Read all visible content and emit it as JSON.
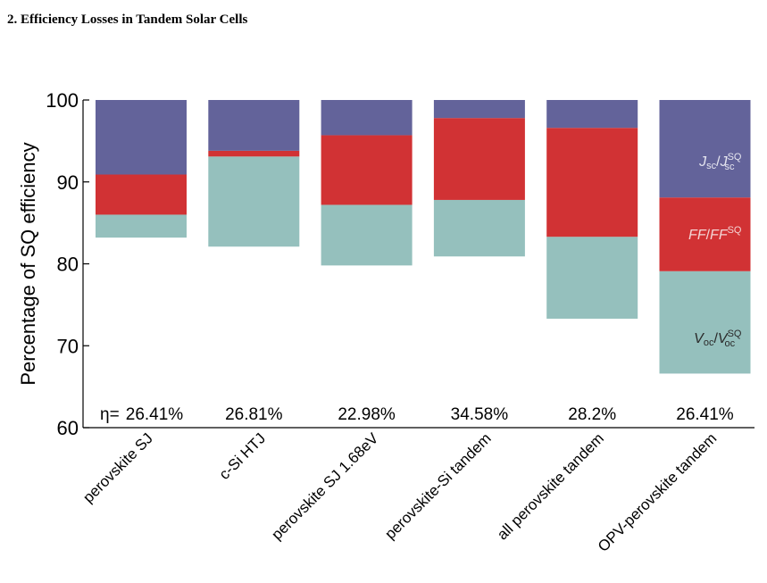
{
  "heading": "2.   Efficiency Losses in Tandem Solar Cells",
  "chart_data": {
    "type": "bar",
    "stacked": true,
    "ylabel": "Percentage of SQ efficiency",
    "ylim": [
      60,
      100
    ],
    "yticks": [
      60,
      70,
      80,
      90,
      100
    ],
    "categories": [
      "perovskite SJ",
      "c-Si HTJ",
      "perovskite SJ 1.68eV",
      "perovskite-Si tandem",
      "all perovskite tandem",
      "OPV-perovskite tandem"
    ],
    "eta_prefix": "η=",
    "efficiencies": [
      "26.41%",
      "26.81%",
      "22.98%",
      "34.58%",
      "28.2%",
      "26.41%"
    ],
    "series": [
      {
        "key": "voc",
        "color": "#95c0bd",
        "lower": [
          83.2,
          82.1,
          79.8,
          80.9,
          73.3,
          66.6
        ],
        "upper": [
          86.0,
          93.1,
          87.2,
          87.8,
          83.3,
          79.1
        ]
      },
      {
        "key": "ff",
        "color": "#d13234",
        "lower": [
          86.0,
          93.1,
          87.2,
          87.8,
          83.3,
          79.1
        ],
        "upper": [
          90.9,
          93.8,
          95.7,
          97.8,
          96.6,
          88.1
        ]
      },
      {
        "key": "jsc",
        "color": "#63639a",
        "lower": [
          90.9,
          93.8,
          95.7,
          97.8,
          96.6,
          88.1
        ],
        "upper": [
          100,
          100,
          100,
          100,
          100,
          100
        ]
      }
    ],
    "annotations": {
      "jsc": {
        "base": "J",
        "sub": "sc",
        "sep": "/",
        "base2": "J",
        "sup2": "SQ",
        "sub2": "sc",
        "color": "#e6e6f0"
      },
      "ff": {
        "base": "FF",
        "sep": "/",
        "base2": "FF",
        "sup2": "SQ",
        "color": "#f4d4d4"
      },
      "voc": {
        "base": "V",
        "sub": "oc",
        "sep": "/",
        "base2": "V",
        "sup2": "SQ",
        "sub2": "oc",
        "color": "#2a2a2a"
      }
    }
  }
}
